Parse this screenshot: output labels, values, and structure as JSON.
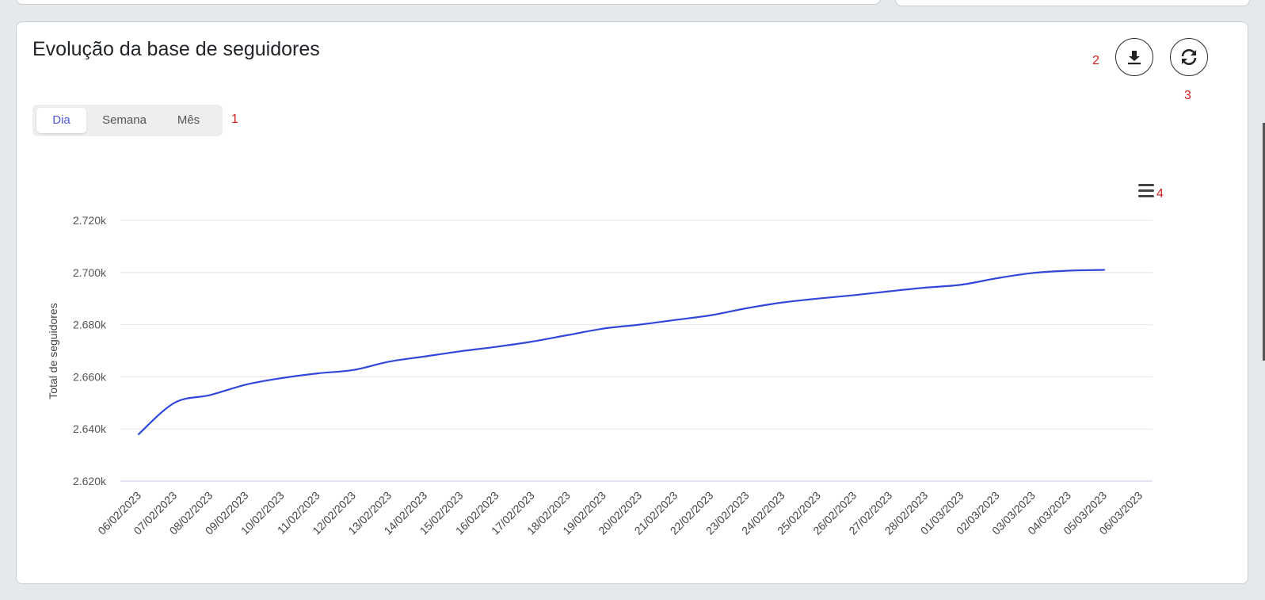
{
  "card": {
    "title": "Evolução da base de seguidores"
  },
  "period_tabs": [
    {
      "label": "Dia",
      "active": true
    },
    {
      "label": "Semana",
      "active": false
    },
    {
      "label": "Mês",
      "active": false
    }
  ],
  "annotations": {
    "one": "1",
    "two": "2",
    "three": "3",
    "four": "4"
  },
  "icons": {
    "download": "download-icon",
    "refresh": "refresh-icon",
    "menu": "hamburger-menu-icon"
  },
  "colors": {
    "accent": "#4f5bd5",
    "line": "#3047d9",
    "annotation": "#d21f1f"
  },
  "chart_data": {
    "type": "line",
    "title": "",
    "ylabel": "Total de seguidores",
    "xlabel": "",
    "ylim": [
      2620,
      2720
    ],
    "yticks": [
      2620,
      2640,
      2660,
      2680,
      2700,
      2720
    ],
    "ytick_labels": [
      "2.620k",
      "2.640k",
      "2.660k",
      "2.680k",
      "2.700k",
      "2.720k"
    ],
    "categories": [
      "06/02/2023",
      "07/02/2023",
      "08/02/2023",
      "09/02/2023",
      "10/02/2023",
      "11/02/2023",
      "12/02/2023",
      "13/02/2023",
      "14/02/2023",
      "15/02/2023",
      "16/02/2023",
      "17/02/2023",
      "18/02/2023",
      "19/02/2023",
      "20/02/2023",
      "21/02/2023",
      "22/02/2023",
      "23/02/2023",
      "24/02/2023",
      "25/02/2023",
      "26/02/2023",
      "27/02/2023",
      "28/02/2023",
      "01/03/2023",
      "02/03/2023",
      "03/03/2023",
      "04/03/2023",
      "05/03/2023",
      "06/03/2023"
    ],
    "series": [
      {
        "values": [
          2638,
          2650,
          2653,
          2657,
          2659.5,
          2661.3,
          2662.6,
          2665.8,
          2667.8,
          2669.8,
          2671.5,
          2673.5,
          2676,
          2678.5,
          2680,
          2681.8,
          2683.6,
          2686.3,
          2688.5,
          2690,
          2691.3,
          2692.8,
          2694.2,
          2695.3,
          2697.8,
          2699.8,
          2700.7,
          2701,
          null
        ]
      }
    ],
    "grid": true,
    "legend": "none"
  }
}
